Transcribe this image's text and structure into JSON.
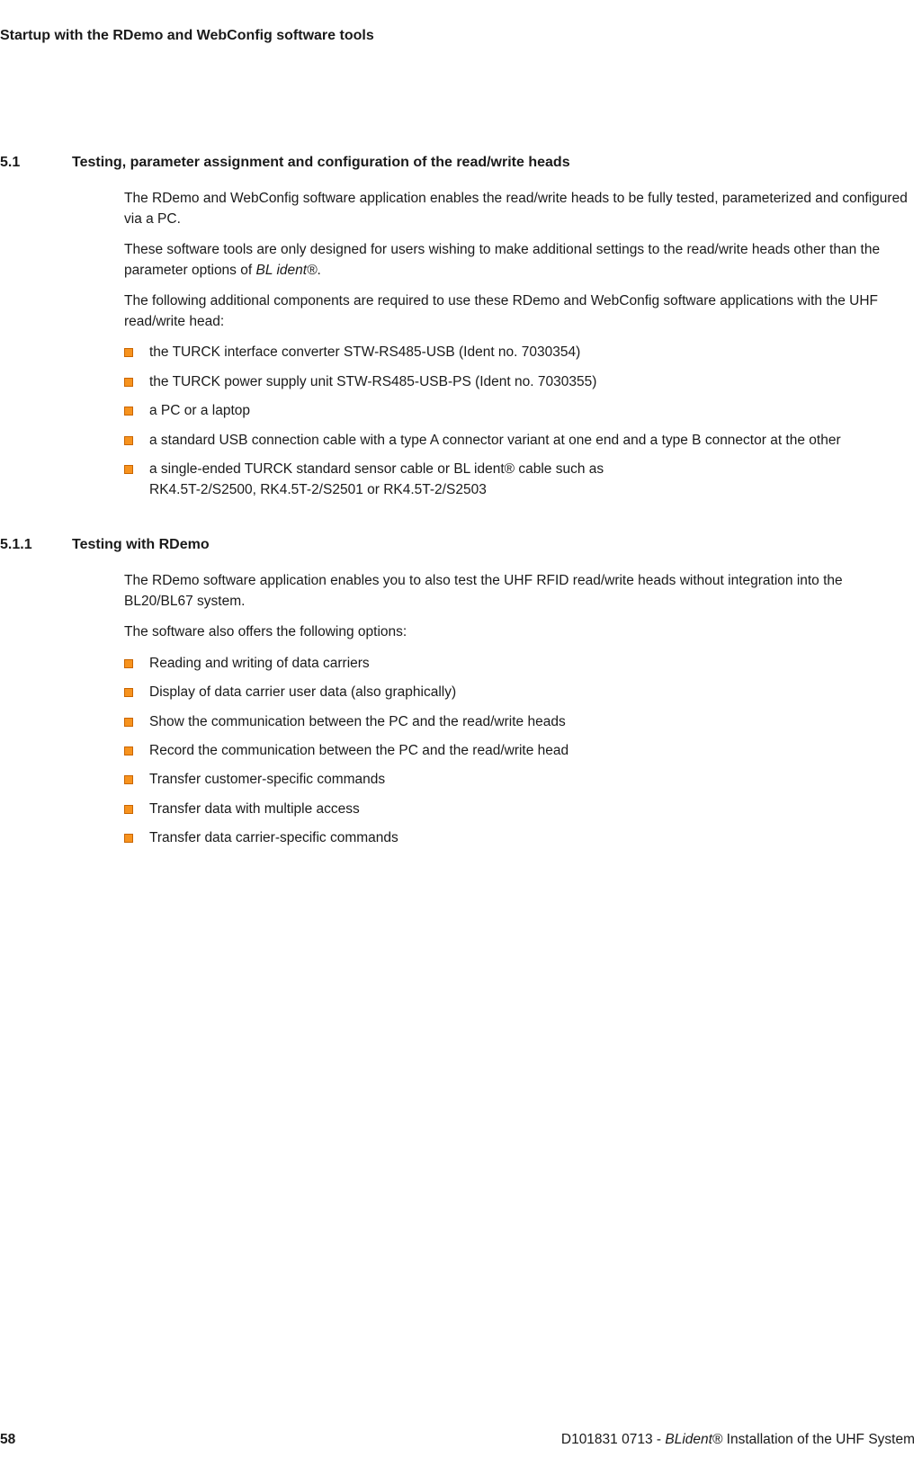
{
  "header": "Startup with the RDemo and WebConfig software tools",
  "section51": {
    "number": "5.1",
    "title": "Testing, parameter assignment and configuration of the read/write heads",
    "para1": "The RDemo and WebConfig software application enables the read/write heads to be fully tested, parameterized and configured via a PC.",
    "para2a": "These software tools are only designed for users wishing to make additional settings to the read/write heads other than the parameter options of ",
    "para2b": "BL ident®",
    "para2c": ".",
    "para3": "The following additional components are required to use these RDemo and WebConfig software applications with the UHF read/write head:",
    "items": [
      "the TURCK interface converter STW-RS485-USB (Ident no. 7030354)",
      "the TURCK power supply unit STW-RS485-USB-PS (Ident no. 7030355)",
      "a PC or a laptop",
      "a standard USB connection cable with a type A connector variant at one end and a type B connector at the other"
    ],
    "item5a": "a single-ended TURCK standard sensor cable or  ",
    "item5b": "BL ident®",
    "item5c": " cable such as",
    "item5d": "RK4.5T-2/S2500, RK4.5T-2/S2501 or RK4.5T-2/S2503"
  },
  "section511": {
    "number": "5.1.1",
    "title": "Testing with RDemo",
    "para1": "The RDemo software application enables you to also test the UHF RFID read/write heads without integration into the BL20/BL67 system.",
    "para2": "The software also offers the following options:",
    "items": [
      "Reading and writing of data carriers",
      "Display of data carrier user data (also graphically)",
      "Show the communication between the PC and the read/write heads",
      "Record the communication between the PC and the read/write head",
      "Transfer customer-specific commands",
      "Transfer data with multiple access",
      "Transfer data carrier-specific commands"
    ]
  },
  "footer": {
    "pageNumber": "58",
    "docRefA": "D101831 0713 -  ",
    "docRefB": "BLident®",
    "docRefC": " Installation of the UHF System"
  }
}
